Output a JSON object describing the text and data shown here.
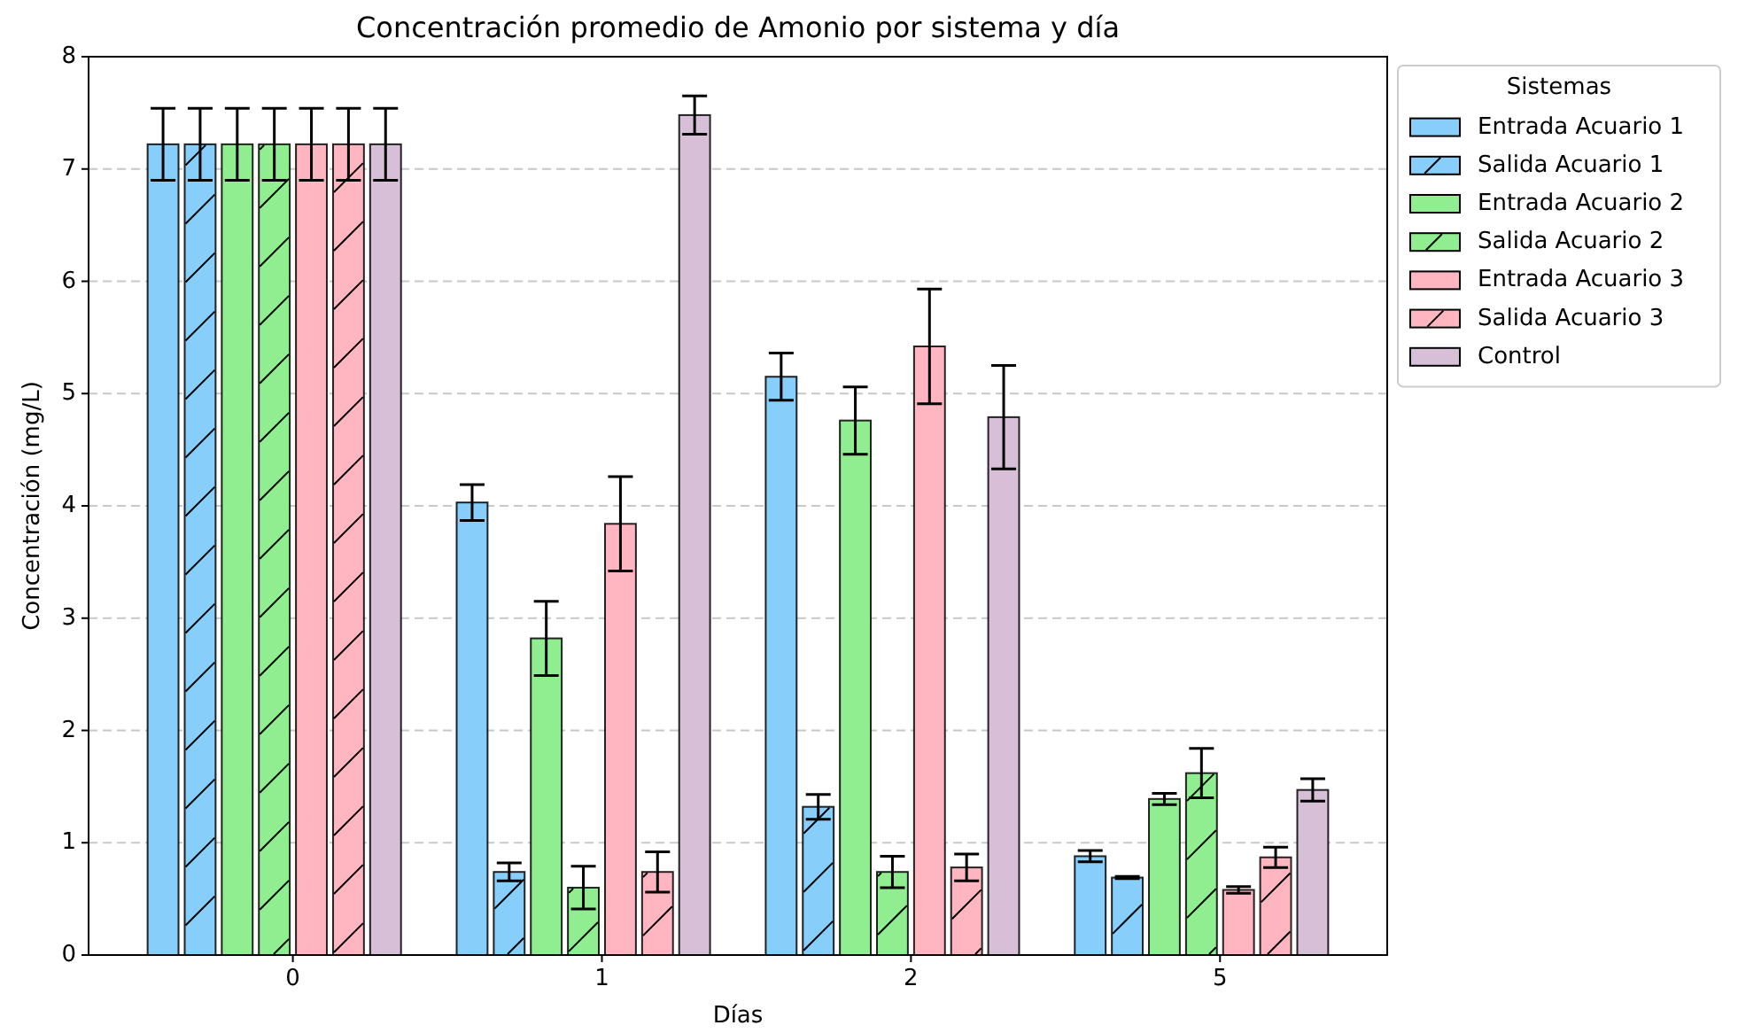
{
  "chart_data": {
    "type": "bar",
    "title": "Concentración promedio de Amonio por sistema y día",
    "xlabel": "Días",
    "ylabel": "Concentración (mg/L)",
    "legend_title": "Sistemas",
    "categories": [
      "0",
      "1",
      "2",
      "5"
    ],
    "series": [
      {
        "name": "Entrada Acuario 1",
        "color": "#87cefa",
        "values": [
          7.22,
          4.03,
          5.15,
          0.88
        ],
        "errors": [
          0.32,
          0.16,
          0.21,
          0.05
        ]
      },
      {
        "name": "Salida Acuario 1",
        "color": "#87cefa",
        "values": [
          7.22,
          0.74,
          1.32,
          0.69
        ],
        "errors": [
          0.32,
          0.08,
          0.11,
          0.01
        ]
      },
      {
        "name": "Entrada Acuario 2",
        "color": "#90ee90",
        "values": [
          7.22,
          2.82,
          4.76,
          1.39
        ],
        "errors": [
          0.32,
          0.33,
          0.3,
          0.05
        ]
      },
      {
        "name": "Salida Acuario 2",
        "color": "#90ee90",
        "values": [
          7.22,
          0.6,
          0.74,
          1.62
        ],
        "errors": [
          0.32,
          0.19,
          0.14,
          0.22
        ]
      },
      {
        "name": "Entrada Acuario 3",
        "color": "#ffb6c1",
        "values": [
          7.22,
          3.84,
          5.42,
          0.58
        ],
        "errors": [
          0.32,
          0.42,
          0.51,
          0.03
        ]
      },
      {
        "name": "Salida Acuario 3",
        "color": "#ffb6c1",
        "values": [
          7.22,
          0.74,
          0.78,
          0.87
        ],
        "errors": [
          0.32,
          0.18,
          0.12,
          0.09
        ]
      },
      {
        "name": "Control",
        "color": "#d8bfd8",
        "values": [
          7.22,
          7.48,
          4.79,
          1.47
        ],
        "errors": [
          0.32,
          0.17,
          0.46,
          0.1
        ]
      }
    ],
    "ylim": [
      0,
      8
    ],
    "yticks": [
      0,
      1,
      2,
      3,
      4,
      5,
      6,
      7,
      8
    ],
    "grid": "y",
    "legend": "top right"
  }
}
